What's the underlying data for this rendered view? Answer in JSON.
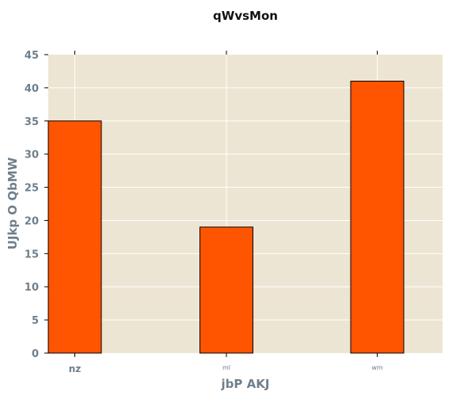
{
  "chart_data": {
    "type": "bar",
    "title": "qWvsMon",
    "xlabel": "jbP  AKJ",
    "ylabel": "UJkp  O QbMW",
    "categories": [
      "nz",
      "ml",
      "wm"
    ],
    "values": [
      35,
      19,
      41
    ],
    "ylim": [
      0,
      45
    ],
    "yticks": [
      "0",
      "5",
      "10",
      "15",
      "20",
      "25",
      "30",
      "35",
      "40",
      "45"
    ],
    "grid": true,
    "legend": "none"
  },
  "colors": {
    "plot_background": "#ede5d3",
    "bar": "#ff5500",
    "bar_edge": "#000000",
    "grid": "#ffffff",
    "label_text": "#6e7f8c"
  }
}
